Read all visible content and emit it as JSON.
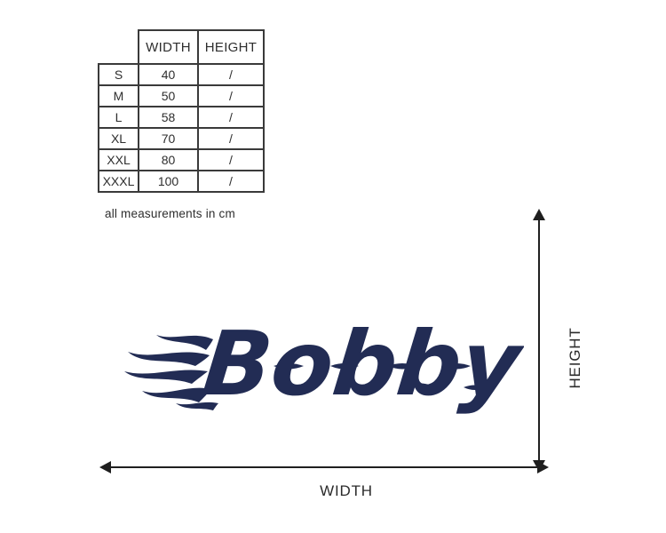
{
  "page": {
    "background_color": "#ffffff"
  },
  "size_table": {
    "columns": [
      "WIDTH",
      "HEIGHT"
    ],
    "rows": [
      {
        "size": "S",
        "width": "40",
        "height": "/"
      },
      {
        "size": "M",
        "width": "50",
        "height": "/"
      },
      {
        "size": "L",
        "width": "58",
        "height": "/"
      },
      {
        "size": "XL",
        "width": "70",
        "height": "/"
      },
      {
        "size": "XXL",
        "width": "80",
        "height": "/"
      },
      {
        "size": "XXXL",
        "width": "100",
        "height": "/"
      }
    ],
    "note": "all measurements in cm",
    "border_color": "#3a3a3a",
    "text_color": "#2e2e2e"
  },
  "logo": {
    "text": "Bobby",
    "style": "flame-lettering",
    "color": "#222c54"
  },
  "dimension_annotations": {
    "width_label": "WIDTH",
    "height_label": "HEIGHT",
    "arrow_color": "#1f1f1f"
  }
}
